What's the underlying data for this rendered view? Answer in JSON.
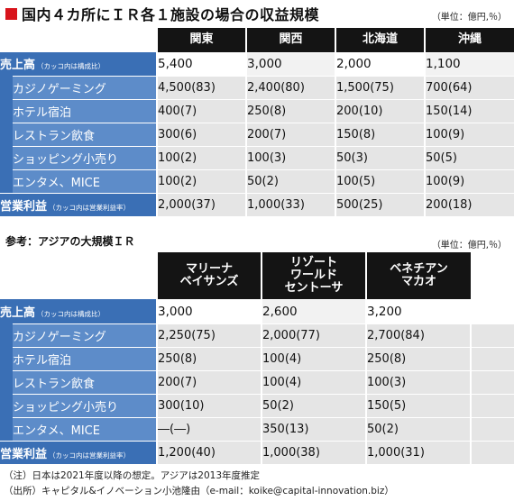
{
  "title": "国内４カ所にＩＲ各１施設の場合の収益規模",
  "unit": "（単位：億円,％）",
  "table1": {
    "headers": [
      "関東",
      "関西",
      "北海道",
      "沖縄"
    ],
    "sales": {
      "label": "売上高",
      "note": "（カッコ内は構成比）",
      "values": [
        "5,400",
        "3,000",
        "2,000",
        "1,100"
      ]
    },
    "rows": [
      {
        "label": "カジノゲーミング",
        "values": [
          "4,500(83)",
          "2,400(80)",
          "1,500(75)",
          "700(64)"
        ]
      },
      {
        "label": "ホテル宿泊",
        "values": [
          "400(7)",
          "250(8)",
          "200(10)",
          "150(14)"
        ]
      },
      {
        "label": "レストラン飲食",
        "values": [
          "300(6)",
          "200(7)",
          "150(8)",
          "100(9)"
        ]
      },
      {
        "label": "ショッピング小売り",
        "values": [
          "100(2)",
          "100(3)",
          "50(3)",
          "50(5)"
        ]
      },
      {
        "label": "エンタメ、MICE",
        "values": [
          "100(2)",
          "50(2)",
          "100(5)",
          "100(9)"
        ]
      }
    ],
    "profit": {
      "label": "営業利益",
      "note": "（カッコ内は営業利益率）",
      "values": [
        "2,000(37)",
        "1,000(33)",
        "500(25)",
        "200(18)"
      ]
    }
  },
  "section2_title": "参考：アジアの大規模ＩＲ",
  "unit2": "（単位：億円,％）",
  "table2": {
    "headers": [
      "マリーナ\nベイサンズ",
      "リゾート\nワールド\nセントーサ",
      "ベネチアン\nマカオ"
    ],
    "sales": {
      "label": "売上高",
      "note": "（カッコ内は構成比）",
      "values": [
        "3,000",
        "2,600",
        "3,200"
      ]
    },
    "rows": [
      {
        "label": "カジノゲーミング",
        "values": [
          "2,250(75)",
          "2,000(77)",
          "2,700(84)"
        ]
      },
      {
        "label": "ホテル宿泊",
        "values": [
          "250(8)",
          "100(4)",
          "250(8)"
        ]
      },
      {
        "label": "レストラン飲食",
        "values": [
          "200(7)",
          "100(4)",
          "100(3)"
        ]
      },
      {
        "label": "ショッピング小売り",
        "values": [
          "300(10)",
          "50(2)",
          "150(5)"
        ]
      },
      {
        "label": "エンタメ、MICE",
        "values": [
          "―(―)",
          "350(13)",
          "50(2)"
        ]
      }
    ],
    "profit": {
      "label": "営業利益",
      "note": "（カッコ内は営業利益率）",
      "values": [
        "1,200(40)",
        "1,000(38)",
        "1,000(31)"
      ]
    }
  },
  "footnotes": [
    "（注）日本は2021年度以降の想定。アジアは2013年度推定",
    "（出所）キャピタル&イノベーション小池隆由（e-mail：koike@capital-innovation.biz）"
  ],
  "colors": {
    "header": "#141414",
    "label_dark": "#3a6fb5",
    "label_light": "#5d8cc9",
    "shade": "#e5e5e5",
    "title_square": "#d8141c"
  }
}
